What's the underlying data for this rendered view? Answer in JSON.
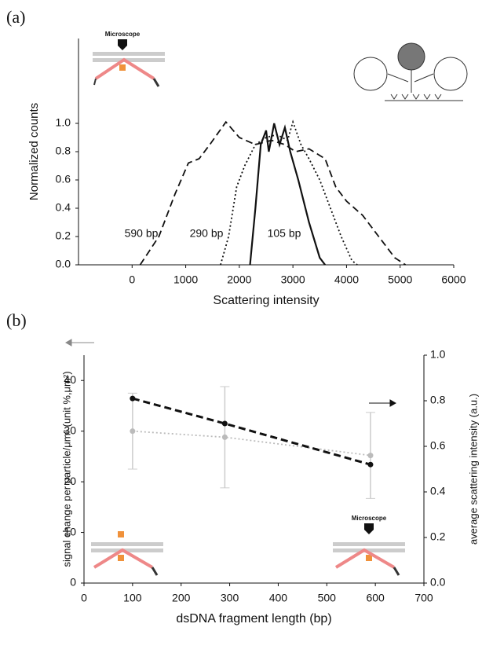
{
  "chart_data": [
    {
      "type": "line",
      "panel_label": "(a)",
      "xlabel": "Scattering intensity",
      "ylabel": "Normalized counts",
      "annotations": [
        "Microscope"
      ],
      "xlim": [
        -1000,
        6000
      ],
      "xticks": [
        0,
        1000,
        2000,
        3000,
        4000,
        5000,
        6000
      ],
      "ylim": [
        0,
        1.6
      ],
      "yticks": [
        {
          "value": 0,
          "label": "0.0"
        },
        {
          "value": 0.2,
          "label": "0.2"
        },
        {
          "value": 0.4,
          "label": "0.4"
        },
        {
          "value": 0.6,
          "label": "0.6"
        },
        {
          "value": 0.8,
          "label": "0.8"
        },
        {
          "value": 1.0,
          "label": "1.0"
        }
      ],
      "series": [
        {
          "name": "590 bp",
          "color": "#111111",
          "style": "dashed",
          "x": [
            150,
            500,
            800,
            1050,
            1250,
            1450,
            1750,
            2000,
            2300,
            2600,
            2850,
            3050,
            3300,
            3600,
            3800,
            4000,
            4300,
            4600,
            4900,
            5100
          ],
          "values": [
            0,
            0.2,
            0.5,
            0.72,
            0.75,
            0.85,
            1.01,
            0.9,
            0.85,
            0.88,
            0.85,
            0.8,
            0.82,
            0.75,
            0.55,
            0.45,
            0.35,
            0.2,
            0.05,
            0
          ]
        },
        {
          "name": "290 bp",
          "color": "#111111",
          "style": "dotted",
          "x": [
            1650,
            1800,
            1950,
            2100,
            2300,
            2500,
            2700,
            2900,
            3000,
            3150,
            3300,
            3500,
            3700,
            3900,
            4100,
            4200
          ],
          "values": [
            0,
            0.2,
            0.55,
            0.7,
            0.85,
            0.9,
            0.92,
            0.88,
            1.01,
            0.85,
            0.75,
            0.6,
            0.4,
            0.2,
            0.03,
            0
          ]
        },
        {
          "name": "105 bp",
          "color": "#111111",
          "style": "solid",
          "x": [
            2200,
            2300,
            2400,
            2500,
            2550,
            2650,
            2750,
            2850,
            2950,
            3100,
            3300,
            3500,
            3600
          ],
          "values": [
            0,
            0.4,
            0.85,
            0.95,
            0.8,
            1.0,
            0.85,
            0.97,
            0.8,
            0.6,
            0.3,
            0.05,
            0
          ]
        }
      ]
    },
    {
      "type": "line",
      "panel_label": "(b)",
      "xlabel": "dsDNA fragment length (bp)",
      "ylabel": "signal change per particle/μm² (unit %,μm²)",
      "y2label": "average scattering intensity (a.u.)",
      "annotations": [
        "Microscope"
      ],
      "xlim": [
        0,
        700
      ],
      "xticks": [
        0,
        100,
        200,
        300,
        400,
        500,
        600,
        700
      ],
      "ylim": [
        0,
        45
      ],
      "yticks": [
        0,
        10,
        20,
        30,
        40
      ],
      "y2lim": [
        0,
        1.0
      ],
      "y2ticks": [
        {
          "value": 0,
          "label": "0.0"
        },
        {
          "value": 0.2,
          "label": "0.2"
        },
        {
          "value": 0.4,
          "label": "0.4"
        },
        {
          "value": 0.6,
          "label": "0.6"
        },
        {
          "value": 0.8,
          "label": "0.8"
        },
        {
          "value": 1.0,
          "label": "1.0"
        }
      ],
      "x": [
        100,
        290,
        590
      ],
      "series": [
        {
          "axis": "y",
          "color": "#bbbbbb",
          "style": "dotted",
          "values": [
            30,
            28.8,
            25.2
          ],
          "errors": [
            7.5,
            10,
            8.5
          ]
        },
        {
          "axis": "y2",
          "color": "#111111",
          "style": "dashed",
          "values": [
            0.81,
            0.7,
            0.52
          ]
        }
      ]
    }
  ]
}
